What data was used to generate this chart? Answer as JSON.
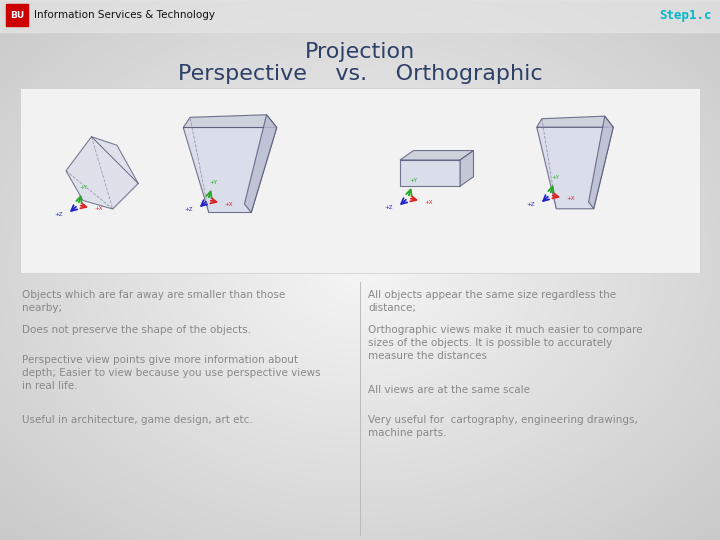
{
  "title_projection": "Projection",
  "title_subtitle": "Perspective    vs.    Orthographic",
  "step_label": "Step1.c",
  "step_color": "#00b8cc",
  "bu_text": "BU",
  "bu_bg": "#cc0000",
  "bu_fg": "#ffffff",
  "header_subtitle": "Information Services & Technology",
  "divider_color": "#cccccc",
  "left_bullets": [
    "Objects which are far away are smaller than those\nnearby;",
    "Does not preserve the shape of the objects.",
    "Perspective view points give more information about\ndepth; Easier to view because you use perspective views\nin real life.",
    "Useful in architecture, game design, art etc."
  ],
  "right_bullets": [
    "All objects appear the same size regardless the\ndistance;",
    "Orthographic views make it much easier to compare\nsizes of the objects. It is possible to accurately\nmeasure the distances",
    "All views are at the same scale",
    "Very useful for  cartography, engineering drawings,\nmachine parts."
  ],
  "title_color": "#2d4068",
  "bullet_color": "#888888",
  "bullet_fontsize": 7.5,
  "title_fontsize": 16,
  "subtitle_fontsize": 16,
  "header_fontsize": 7.5,
  "step_fontsize": 9
}
